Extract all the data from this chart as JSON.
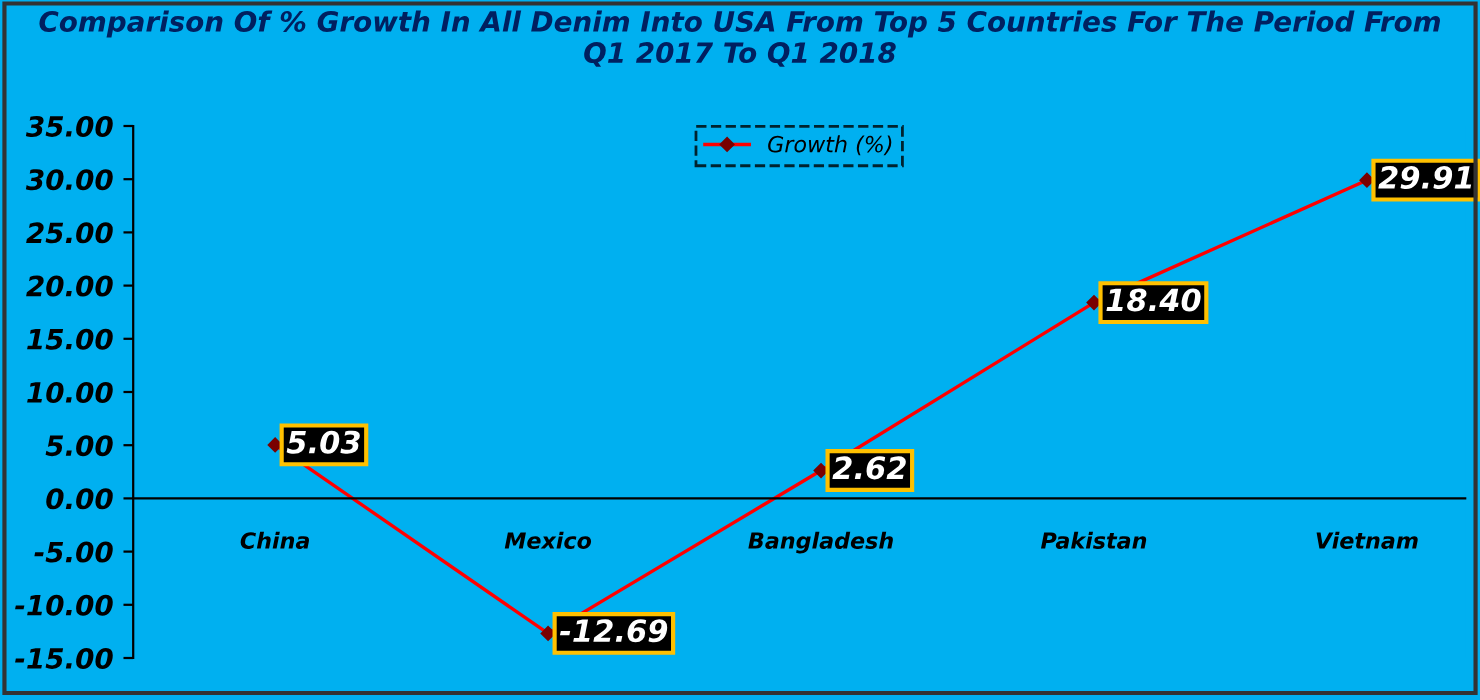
{
  "chart_data": {
    "type": "line",
    "title": "Comparison Of % Growth In All Denim Into USA From Top 5 Countries For The Period From\nQ1 2017 To Q1 2018",
    "categories": [
      "China",
      "Mexico",
      "Bangladesh",
      "Pakistan",
      "Vietnam"
    ],
    "series": [
      {
        "name": "Growth (%)",
        "color": "#ff0000",
        "values": [
          5.03,
          -12.69,
          2.62,
          18.4,
          29.91
        ],
        "value_labels": [
          "5.03",
          "-12.69",
          "2.62",
          "18.40",
          "29.91"
        ]
      }
    ],
    "ylim": [
      -15,
      35
    ],
    "yticks": [
      {
        "value": -15,
        "label": "-15.00"
      },
      {
        "value": -10,
        "label": "-10.00"
      },
      {
        "value": -5,
        "label": "-5.00"
      },
      {
        "value": 0,
        "label": "0.00"
      },
      {
        "value": 5,
        "label": "5.00"
      },
      {
        "value": 10,
        "label": "10.00"
      },
      {
        "value": 15,
        "label": "15.00"
      },
      {
        "value": 20,
        "label": "20.00"
      },
      {
        "value": 25,
        "label": "25.00"
      },
      {
        "value": 30,
        "label": "30.00"
      },
      {
        "value": 35,
        "label": "35.00"
      }
    ],
    "marker": "diamond",
    "line_style": "solid",
    "grid": false,
    "legend": "top"
  }
}
